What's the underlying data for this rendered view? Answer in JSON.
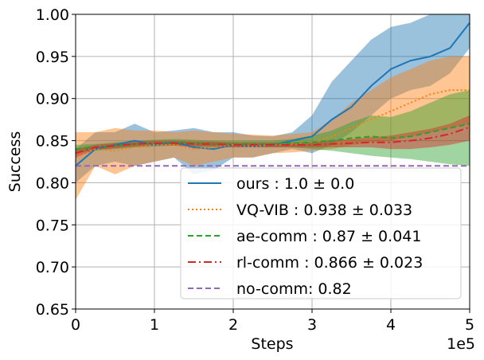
{
  "chart_data": {
    "type": "line",
    "xlabel": "Steps",
    "ylabel": "Success",
    "x_offset_label": "1e5",
    "xlim": [
      0,
      500000
    ],
    "ylim": [
      0.65,
      1.0
    ],
    "grid": true,
    "legend_position": "lower-right",
    "x_ticks": [
      {
        "value": 0,
        "label": "0"
      },
      {
        "value": 100000,
        "label": "1"
      },
      {
        "value": 200000,
        "label": "2"
      },
      {
        "value": 300000,
        "label": "3"
      },
      {
        "value": 400000,
        "label": "4"
      },
      {
        "value": 500000,
        "label": "5"
      }
    ],
    "y_ticks": [
      {
        "value": 0.65,
        "label": "0.65"
      },
      {
        "value": 0.7,
        "label": "0.70"
      },
      {
        "value": 0.75,
        "label": "0.75"
      },
      {
        "value": 0.8,
        "label": "0.80"
      },
      {
        "value": 0.85,
        "label": "0.85"
      },
      {
        "value": 0.9,
        "label": "0.90"
      },
      {
        "value": 0.95,
        "label": "0.95"
      },
      {
        "value": 1.0,
        "label": "1.00"
      }
    ],
    "x": [
      0,
      25000,
      50000,
      75000,
      100000,
      125000,
      150000,
      175000,
      200000,
      225000,
      250000,
      275000,
      300000,
      325000,
      350000,
      375000,
      400000,
      425000,
      450000,
      475000,
      500000
    ],
    "series": [
      {
        "name": "ours : 1.0 ± 0.0",
        "color": "#1f77b4",
        "dash": "solid",
        "values": [
          0.82,
          0.84,
          0.845,
          0.85,
          0.845,
          0.848,
          0.842,
          0.84,
          0.845,
          0.843,
          0.845,
          0.85,
          0.855,
          0.875,
          0.89,
          0.915,
          0.935,
          0.945,
          0.95,
          0.96,
          0.99
        ],
        "lower": [
          0.8,
          0.82,
          0.825,
          0.82,
          0.825,
          0.83,
          0.81,
          0.815,
          0.83,
          0.83,
          0.835,
          0.84,
          0.835,
          0.845,
          0.86,
          0.88,
          0.9,
          0.91,
          0.915,
          0.93,
          0.96
        ],
        "upper": [
          0.84,
          0.86,
          0.86,
          0.87,
          0.86,
          0.862,
          0.865,
          0.86,
          0.86,
          0.856,
          0.855,
          0.86,
          0.88,
          0.92,
          0.945,
          0.97,
          0.985,
          0.99,
          1.0,
          1.0,
          1.0
        ]
      },
      {
        "name": "VQ-VIB : 0.938 ± 0.033",
        "color": "#ff7f0e",
        "dash": "dotted",
        "values": [
          0.83,
          0.84,
          0.838,
          0.842,
          0.845,
          0.845,
          0.84,
          0.842,
          0.845,
          0.843,
          0.845,
          0.846,
          0.848,
          0.855,
          0.865,
          0.875,
          0.885,
          0.895,
          0.905,
          0.91,
          0.91
        ],
        "lower": [
          0.78,
          0.82,
          0.81,
          0.82,
          0.825,
          0.83,
          0.82,
          0.825,
          0.83,
          0.83,
          0.835,
          0.836,
          0.838,
          0.84,
          0.845,
          0.848,
          0.85,
          0.855,
          0.86,
          0.865,
          0.87
        ],
        "upper": [
          0.86,
          0.86,
          0.865,
          0.862,
          0.862,
          0.86,
          0.862,
          0.86,
          0.858,
          0.857,
          0.856,
          0.858,
          0.86,
          0.875,
          0.895,
          0.91,
          0.925,
          0.935,
          0.945,
          0.95,
          0.95
        ]
      },
      {
        "name": "ae-comm : 0.87 ± 0.041",
        "color": "#2ca02c",
        "dash": "dashed",
        "values": [
          0.84,
          0.842,
          0.844,
          0.846,
          0.847,
          0.848,
          0.847,
          0.846,
          0.846,
          0.846,
          0.846,
          0.847,
          0.848,
          0.85,
          0.853,
          0.855,
          0.853,
          0.855,
          0.86,
          0.865,
          0.87
        ],
        "lower": [
          0.835,
          0.838,
          0.84,
          0.842,
          0.843,
          0.844,
          0.843,
          0.842,
          0.842,
          0.842,
          0.842,
          0.842,
          0.84,
          0.838,
          0.835,
          0.832,
          0.83,
          0.828,
          0.825,
          0.822,
          0.82
        ],
        "upper": [
          0.845,
          0.846,
          0.848,
          0.85,
          0.851,
          0.852,
          0.851,
          0.85,
          0.85,
          0.85,
          0.85,
          0.852,
          0.856,
          0.862,
          0.872,
          0.88,
          0.878,
          0.885,
          0.895,
          0.905,
          0.91
        ]
      },
      {
        "name": "rl-comm : 0.866 ± 0.023",
        "color": "#d62728",
        "dash": "dashdot",
        "values": [
          0.835,
          0.842,
          0.844,
          0.846,
          0.847,
          0.847,
          0.846,
          0.846,
          0.845,
          0.845,
          0.845,
          0.845,
          0.845,
          0.846,
          0.847,
          0.848,
          0.848,
          0.85,
          0.853,
          0.858,
          0.866
        ],
        "lower": [
          0.83,
          0.839,
          0.841,
          0.843,
          0.844,
          0.844,
          0.843,
          0.843,
          0.842,
          0.842,
          0.842,
          0.842,
          0.842,
          0.842,
          0.842,
          0.842,
          0.84,
          0.84,
          0.842,
          0.845,
          0.85
        ],
        "upper": [
          0.84,
          0.845,
          0.847,
          0.849,
          0.85,
          0.85,
          0.849,
          0.849,
          0.848,
          0.848,
          0.848,
          0.848,
          0.848,
          0.85,
          0.852,
          0.854,
          0.856,
          0.86,
          0.864,
          0.87,
          0.88
        ]
      },
      {
        "name": "no-comm: 0.82",
        "color": "#9467bd",
        "dash": "dashed",
        "values": [
          0.82,
          0.82,
          0.82,
          0.82,
          0.82,
          0.82,
          0.82,
          0.82,
          0.82,
          0.82,
          0.82,
          0.82,
          0.82,
          0.82,
          0.82,
          0.82,
          0.82,
          0.82,
          0.82,
          0.82,
          0.82
        ]
      }
    ]
  }
}
